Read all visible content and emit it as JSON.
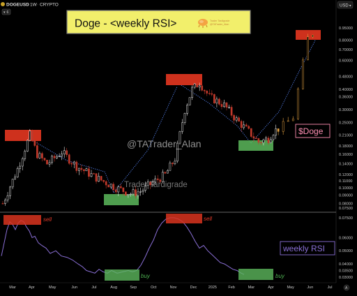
{
  "header": {
    "symbol": "DOGEUSD",
    "timeframe": "1W",
    "market": "CRYPTO",
    "badge": "6",
    "currency": "USD"
  },
  "title_box": {
    "text": "Doge - <weekly RSI>",
    "logo_line1": "Trader Tardigrade",
    "logo_line2": "@TATrader_Alan"
  },
  "watermarks": {
    "handle": "@TATrader_Alan",
    "name": "Trader Tardigrade"
  },
  "labels": {
    "doge": "$Doge",
    "rsi": "weekly RSI",
    "sell": "sell",
    "buy": "buy",
    "axis_a": "A"
  },
  "colors": {
    "up": "#e8e8e8",
    "down": "#c0392b",
    "rsi_line": "#8a6fd6",
    "sell_box": "#d9341f",
    "buy_box": "#5cb85c",
    "title_bg": "#f2ef6b",
    "doge_label": "#ff8fb3",
    "rsi_label": "#8a6fd6",
    "trend": "#5b8bff"
  },
  "chart_data": {
    "type": "line",
    "title": "Doge - <weekly RSI>",
    "x_ticks": [
      "Mar",
      "Apr",
      "May",
      "Jun",
      "Jul",
      "Aug",
      "Sep",
      "Oct",
      "Nov",
      "Dec",
      "2025",
      "Feb",
      "Mar",
      "Apr",
      "May",
      "Jun",
      "Jul"
    ],
    "price_axis_ticks": [
      "0.95000",
      "0.80000",
      "0.70000",
      "0.60000",
      "0.48000",
      "0.40000",
      "0.36000",
      "0.30000",
      "0.25000",
      "0.21000",
      "0.18000",
      "0.16000",
      "0.14000",
      "0.12000",
      "0.11000",
      "0.10000",
      "0.09000",
      "0.08000",
      "0.07500"
    ],
    "rsi_axis_ticks": [
      "0.07500",
      "0.06000",
      "0.05000",
      "0.04000",
      "0.03500",
      "0.03000"
    ],
    "series": [
      {
        "name": "DOGEUSD",
        "x": [
          "Feb",
          "Mar",
          "Mar",
          "Apr",
          "Apr",
          "May",
          "May",
          "Jun",
          "Jun",
          "Jul",
          "Jul",
          "Aug",
          "Aug",
          "Sep",
          "Sep",
          "Oct",
          "Oct",
          "Nov",
          "Nov",
          "Dec",
          "Dec",
          "2025",
          "2025",
          "Feb",
          "Feb",
          "Mar",
          "Mar",
          "Apr",
          "Apr",
          "May",
          "May",
          "Jun",
          "Jun",
          "Jul"
        ],
        "values": [
          0.08,
          0.12,
          0.17,
          0.2,
          0.15,
          0.14,
          0.16,
          0.15,
          0.13,
          0.12,
          0.11,
          0.1,
          0.095,
          0.1,
          0.11,
          0.12,
          0.15,
          0.3,
          0.38,
          0.4,
          0.36,
          0.35,
          0.32,
          0.3,
          0.26,
          0.23,
          0.2,
          0.21,
          0.22,
          0.24,
          0.27,
          0.48,
          0.85,
          0.95
        ]
      },
      {
        "name": "weekly RSI",
        "x": [
          "Feb",
          "Mar",
          "Mar",
          "Apr",
          "Apr",
          "May",
          "May",
          "Jun",
          "Jun",
          "Jul",
          "Jul",
          "Aug",
          "Aug",
          "Sep",
          "Sep",
          "Oct",
          "Oct",
          "Nov",
          "Nov",
          "Dec",
          "Dec",
          "2025",
          "2025",
          "Feb",
          "Feb",
          "Mar",
          "Mar"
        ],
        "values": [
          0.07,
          0.073,
          0.072,
          0.065,
          0.06,
          0.055,
          0.05,
          0.045,
          0.04,
          0.037,
          0.035,
          0.033,
          0.032,
          0.033,
          0.035,
          0.05,
          0.07,
          0.075,
          0.075,
          0.055,
          0.045,
          0.04,
          0.038,
          0.036,
          0.035,
          0.033,
          0.032
        ]
      }
    ],
    "annotations": [
      {
        "text": "sell",
        "x": "Apr",
        "value": 0.073
      },
      {
        "text": "sell",
        "x": "Dec",
        "value": 0.075
      },
      {
        "text": "buy",
        "x": "Sep",
        "value": 0.032
      },
      {
        "text": "buy",
        "x": "Mar",
        "value": 0.032
      }
    ],
    "grid": false,
    "legend": "none"
  }
}
